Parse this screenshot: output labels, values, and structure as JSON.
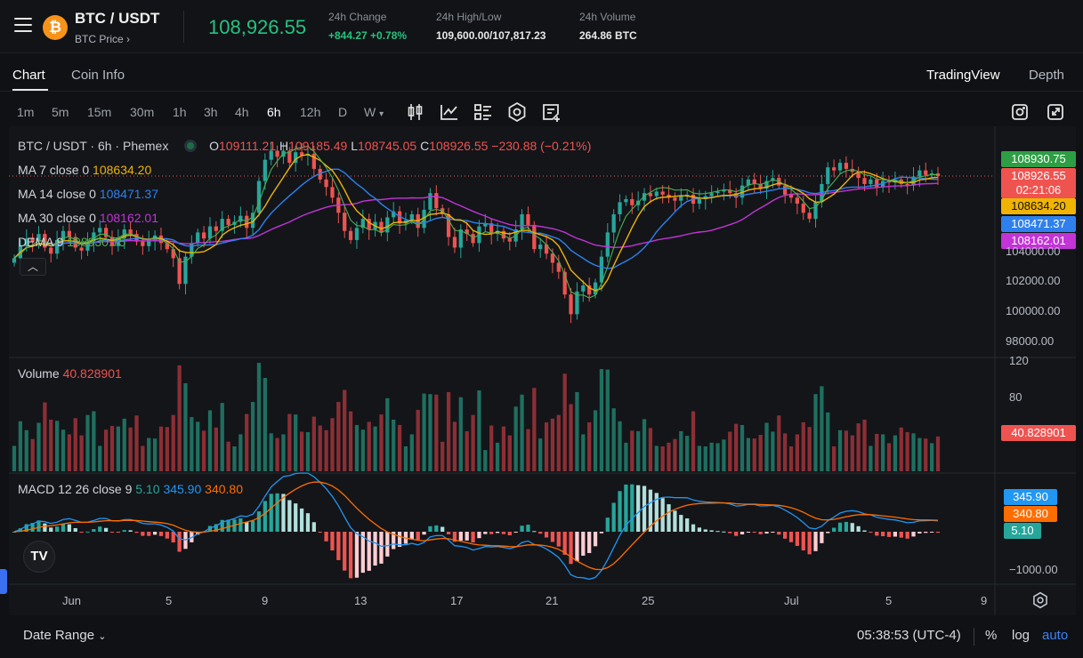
{
  "header": {
    "pair": "BTC / USDT",
    "sub": "BTC Price",
    "last_price": "108,926.55",
    "change_label": "24h Change",
    "change_value": "+844.27 +0.78%",
    "hl_label": "24h High/Low",
    "hl_value": "109,600.00/107,817.23",
    "vol_label": "24h Volume",
    "vol_value": "264.86 BTC"
  },
  "tabs": {
    "chart": "Chart",
    "coininfo": "Coin Info",
    "tradingview": "TradingView",
    "depth": "Depth"
  },
  "timeframes": [
    "1m",
    "5m",
    "15m",
    "30m",
    "1h",
    "3h",
    "4h",
    "6h",
    "12h",
    "D",
    "W"
  ],
  "active_timeframe": "6h",
  "legend": {
    "title": "BTC / USDT · 6h · Phemex",
    "o_lbl": "O",
    "o": "109111.21",
    "h_lbl": "H",
    "h": "109185.49",
    "l_lbl": "L",
    "l": "108745.05",
    "c_lbl": "C",
    "c": "108926.55",
    "chg": "−230.88 (−0.21%)",
    "ma7_lbl": "MA 7 close 0",
    "ma7": "108634.20",
    "ma14_lbl": "MA 14 close 0",
    "ma14": "108471.37",
    "ma30_lbl": "MA 30 close 0",
    "ma30": "108162.01",
    "dema_lbl": "DEMA 9",
    "dema": "108930.75",
    "vol_lbl": "Volume",
    "vol": "40.828901",
    "macd_lbl": "MACD 12 26 close 9",
    "macd_h": "5.10",
    "macd_m": "345.90",
    "macd_s": "340.80"
  },
  "price_tags": {
    "dema": "108930.75",
    "last": "108926.55",
    "countdown": "02:21:06",
    "ma7": "108634.20",
    "ma14": "108471.37",
    "ma30": "108162.01",
    "vol": "40.828901",
    "macd_m": "345.90",
    "macd_s": "340.80",
    "macd_h": "5.10"
  },
  "price_axis": [
    "104000.00",
    "102000.00",
    "100000.00",
    "98000.00"
  ],
  "volume_axis": [
    "120",
    "80"
  ],
  "macd_axis": [
    "−1000.00"
  ],
  "date_axis": [
    "Jun",
    "5",
    "9",
    "13",
    "17",
    "21",
    "25",
    "Jul",
    "5",
    "9"
  ],
  "bottom": {
    "date_range": "Date Range",
    "clock": "05:38:53 (UTC-4)",
    "pct": "%",
    "log": "log",
    "auto": "auto"
  },
  "colors": {
    "up": "#26a69a",
    "down": "#ef5350",
    "ma7": "#f0b400",
    "ma14": "#2f80ed",
    "ma30": "#c234d6",
    "dema": "#4caf50",
    "macd": "#2196f3",
    "signal": "#ff6d00"
  },
  "chart_data": {
    "type": "candlestick",
    "interval": "6h",
    "closes": [
      103500,
      104300,
      104800,
      104600,
      105100,
      104200,
      103800,
      104700,
      105300,
      104900,
      104200,
      104000,
      104600,
      105200,
      105500,
      104900,
      104300,
      104800,
      105400,
      105100,
      104600,
      104300,
      104700,
      105000,
      104500,
      104100,
      103500,
      101800,
      103600,
      104500,
      105200,
      104800,
      105600,
      105300,
      106100,
      105700,
      105900,
      106300,
      105500,
      106500,
      108600,
      110000,
      110600,
      110200,
      110600,
      109800,
      110500,
      110300,
      110400,
      109400,
      108700,
      108200,
      107500,
      106500,
      105300,
      104700,
      105500,
      106100,
      105400,
      105900,
      105200,
      106200,
      106600,
      105800,
      106000,
      106400,
      105500,
      106700,
      107800,
      106800,
      106400,
      104900,
      104200,
      105400,
      105100,
      104500,
      105600,
      105800,
      105100,
      105300,
      104800,
      104600,
      105400,
      106400,
      105700,
      104100,
      104400,
      103800,
      103200,
      102600,
      101100,
      99800,
      101300,
      101700,
      101100,
      101900,
      103600,
      105200,
      106400,
      107200,
      107400,
      107000,
      107300,
      107800,
      107600,
      107900,
      107700,
      107500,
      107300,
      107600,
      107700,
      107100,
      107400,
      107600,
      107800,
      107900,
      108000,
      107800,
      107500,
      108300,
      108700,
      108400,
      108100,
      108600,
      108800,
      108300,
      107700,
      107500,
      107100,
      106500,
      106100,
      107200,
      108400,
      109500,
      109300,
      109800,
      109400,
      109200,
      108800,
      108400,
      108700,
      108200,
      108600,
      108500,
      108700,
      108400,
      108300,
      108900,
      109300,
      109000,
      109100,
      108926
    ]
  }
}
